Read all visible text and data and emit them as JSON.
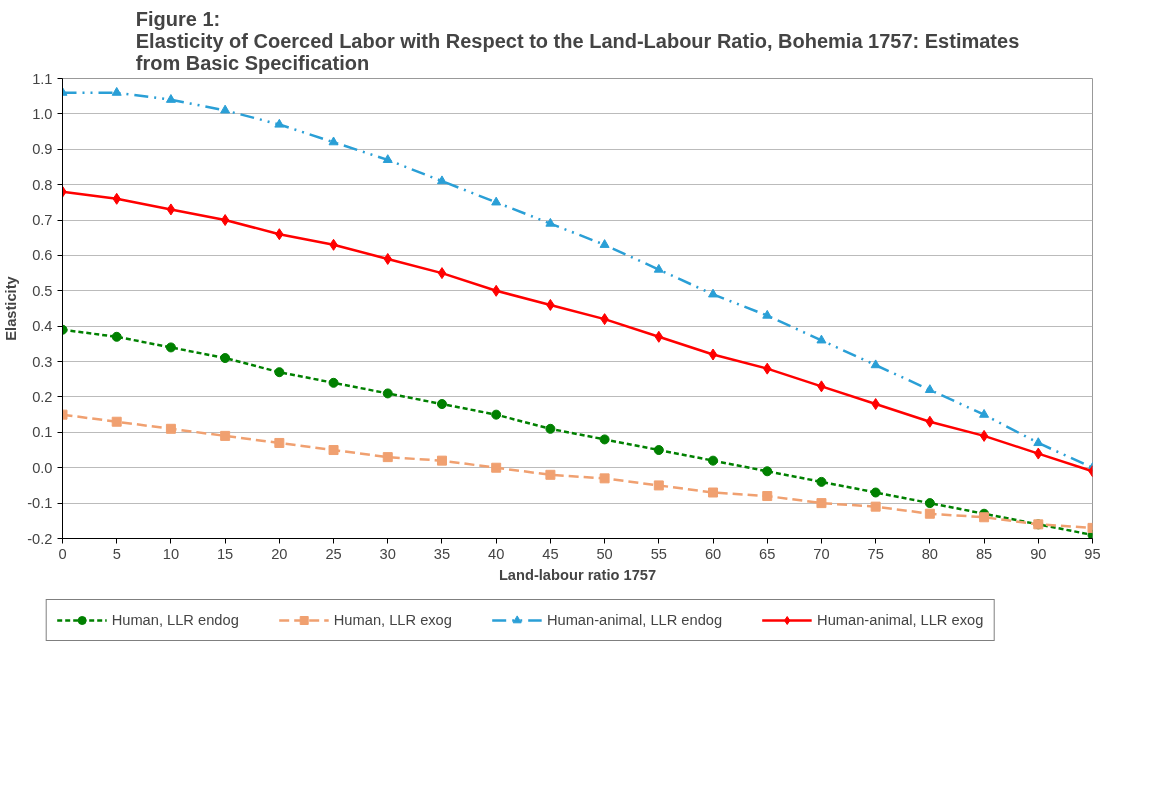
{
  "chart_data": {
    "type": "line",
    "title": "Figure 1:\nElasticity of Coerced Labor with Respect to the Land-Labour Ratio, Bohemia 1757: Estimates\nfrom Basic Specification",
    "xlabel": "Land-labour ratio 1757",
    "ylabel": "Elasticity",
    "x": [
      0,
      5,
      10,
      15,
      20,
      25,
      30,
      35,
      40,
      45,
      50,
      55,
      60,
      65,
      70,
      75,
      80,
      85,
      90,
      95
    ],
    "series": [
      {
        "name": "Human, LLR endog",
        "color": "#008000",
        "marker": "circle",
        "line_style": "dotted",
        "values": [
          0.39,
          0.37,
          0.34,
          0.31,
          0.27,
          0.24,
          0.21,
          0.18,
          0.15,
          0.11,
          0.08,
          0.05,
          0.02,
          -0.01,
          -0.04,
          -0.07,
          -0.1,
          -0.13,
          -0.16,
          -0.19
        ]
      },
      {
        "name": "Human, LLR exog",
        "color": "#f0a070",
        "marker": "square",
        "line_style": "dashed",
        "values": [
          0.15,
          0.13,
          0.11,
          0.09,
          0.07,
          0.05,
          0.03,
          0.02,
          0.0,
          -0.02,
          -0.03,
          -0.05,
          -0.07,
          -0.08,
          -0.1,
          -0.11,
          -0.13,
          -0.14,
          -0.16,
          -0.17
        ]
      },
      {
        "name": "Human-animal, LLR endog",
        "color": "#2a9fd6",
        "marker": "triangle",
        "line_style": "dashdot",
        "values": [
          1.06,
          1.06,
          1.04,
          1.01,
          0.97,
          0.92,
          0.87,
          0.81,
          0.75,
          0.69,
          0.63,
          0.56,
          0.49,
          0.43,
          0.36,
          0.29,
          0.22,
          0.15,
          0.07,
          0.0
        ]
      },
      {
        "name": "Human-animal, LLR exog",
        "color": "#ff0000",
        "marker": "diamond",
        "line_style": "solid",
        "values": [
          0.78,
          0.76,
          0.73,
          0.7,
          0.66,
          0.63,
          0.59,
          0.55,
          0.5,
          0.46,
          0.42,
          0.37,
          0.32,
          0.28,
          0.23,
          0.18,
          0.13,
          0.09,
          0.04,
          -0.01
        ]
      }
    ],
    "xlim": [
      0,
      95
    ],
    "xticks": [
      0,
      5,
      10,
      15,
      20,
      25,
      30,
      35,
      40,
      45,
      50,
      55,
      60,
      65,
      70,
      75,
      80,
      85,
      90,
      95
    ],
    "ylim": [
      -0.2,
      1.1
    ],
    "yticks": [
      {
        "value": -0.2,
        "label": "-0.2"
      },
      {
        "value": -0.1,
        "label": "-0.1"
      },
      {
        "value": 0,
        "label": "0.0"
      },
      {
        "value": 0.1,
        "label": "0.1"
      },
      {
        "value": 0.2,
        "label": "0.2"
      },
      {
        "value": 0.3,
        "label": "0.3"
      },
      {
        "value": 0.4,
        "label": "0.4"
      },
      {
        "value": 0.5,
        "label": "0.5"
      },
      {
        "value": 0.6,
        "label": "0.6"
      },
      {
        "value": 0.7,
        "label": "0.7"
      },
      {
        "value": 0.8,
        "label": "0.8"
      },
      {
        "value": 0.9,
        "label": "0.9"
      },
      {
        "value": 1.0,
        "label": "1.0"
      },
      {
        "value": 1.1,
        "label": "1.1"
      }
    ],
    "grid": "y",
    "legend": "bottom"
  }
}
